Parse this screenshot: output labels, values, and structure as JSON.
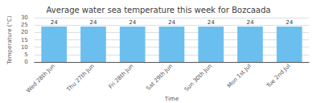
{
  "chart_data": {
    "type": "bar",
    "title": "Average water sea temperature this week for Bozcaada",
    "categories": [
      "Wed 28th Jun",
      "Thu 27th Jun",
      "Fri 28th Jun",
      "Sat 29th Jun",
      "Sun 30th Jun",
      "Mon 1st Jul",
      "Tue 2nd Jul"
    ],
    "values": [
      24,
      24,
      24,
      24,
      24,
      24,
      24
    ],
    "color": "#6bbfef",
    "xlabel": "Time",
    "ylabel": "Temperature (°C)",
    "ylim": [
      0,
      30
    ],
    "yticks": [
      0,
      5,
      10,
      15,
      20,
      25,
      30
    ],
    "grid": true,
    "data_labels": true
  }
}
